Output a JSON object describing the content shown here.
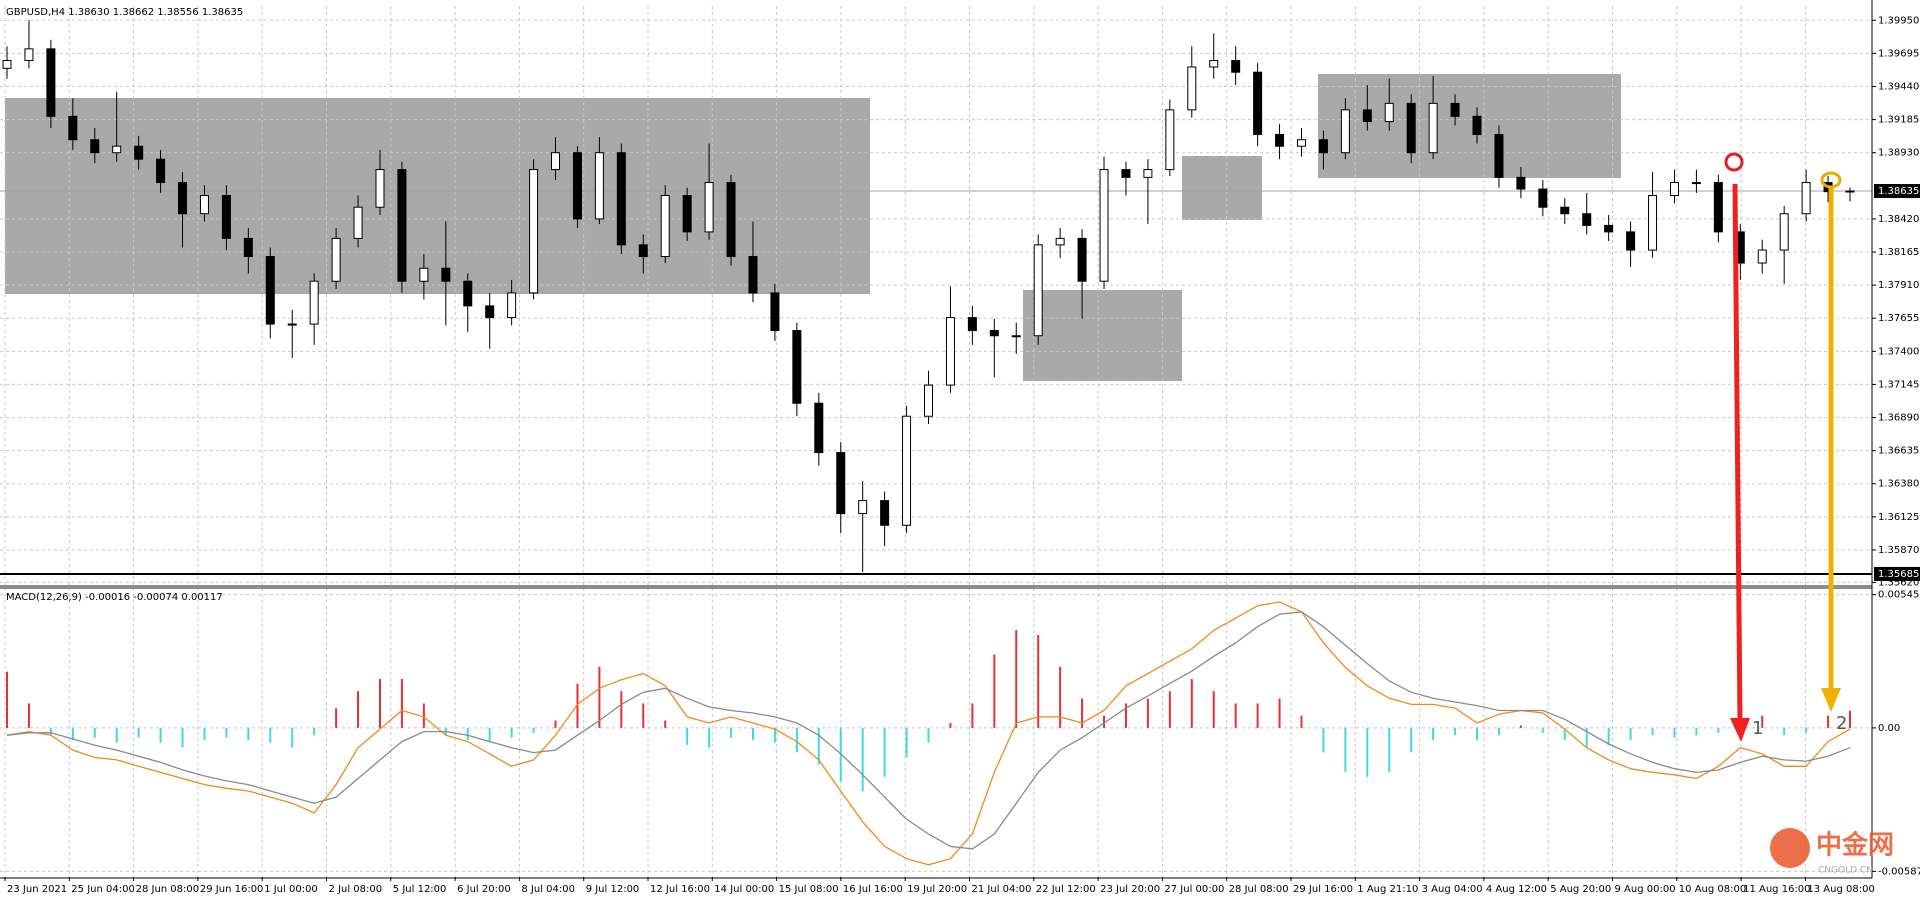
{
  "chart_data": {
    "type": "candlestick",
    "title": "GBPUSD,H4  1.38630 1.38662 1.38556 1.38635",
    "ylim": [
      1.356,
      1.4006
    ],
    "yticks": [
      {
        "value": 1.3995,
        "label": "1.39950"
      },
      1.39695,
      {
        "value": 1.3944,
        "label": "1.39440"
      },
      1.39185,
      {
        "value": 1.3893,
        "label": "1.38930"
      },
      {
        "value": 1.3842,
        "label": "1.38420"
      },
      1.38165,
      {
        "value": 1.3791,
        "label": "1.37910"
      },
      1.37655,
      {
        "value": 1.374,
        "label": "1.37400"
      },
      1.37145,
      {
        "value": 1.3689,
        "label": "1.36890"
      },
      1.36635,
      {
        "value": 1.3638,
        "label": "1.36380"
      },
      1.36125,
      {
        "value": 1.3587,
        "label": "1.35870"
      },
      {
        "value": 1.3562,
        "label": "1.35620"
      }
    ],
    "grid": true,
    "bull_color": "#ffffff",
    "bear_color": "#000000",
    "x_labels": [
      "23 Jun 2021",
      "25 Jun 04:00",
      "28 Jun 08:00",
      "29 Jun 16:00",
      "1 Jul 00:00",
      "2 Jul 08:00",
      "5 Jul 12:00",
      "6 Jul 20:00",
      "8 Jul 04:00",
      "9 Jul 12:00",
      "12 Jul 16:00",
      "14 Jul 00:00",
      "15 Jul 08:00",
      "16 Jul 16:00",
      "19 Jul 20:00",
      "21 Jul 04:00",
      "22 Jul 12:00",
      "23 Jul 20:00",
      "27 Jul 00:00",
      "28 Jul 08:00",
      "29 Jul 16:00",
      "1 Aug 21:10",
      "3 Aug 04:00",
      "4 Aug 12:00",
      "5 Aug 20:00",
      "9 Aug 00:00",
      "10 Aug 08:00",
      "11 Aug 16:00",
      "13 Aug 08:00"
    ],
    "candles": [
      [
        1.3958,
        1.3975,
        1.395,
        1.3964
      ],
      [
        1.3964,
        1.3995,
        1.3958,
        1.3973
      ],
      [
        1.3973,
        1.398,
        1.3912,
        1.3921
      ],
      [
        1.3921,
        1.3935,
        1.3895,
        1.3903
      ],
      [
        1.3903,
        1.3912,
        1.3885,
        1.3893
      ],
      [
        1.3893,
        1.394,
        1.3886,
        1.3898
      ],
      [
        1.3898,
        1.3906,
        1.388,
        1.3888
      ],
      [
        1.3888,
        1.3895,
        1.3862,
        1.387
      ],
      [
        1.387,
        1.3878,
        1.382,
        1.3846
      ],
      [
        1.3846,
        1.3868,
        1.384,
        1.386
      ],
      [
        1.386,
        1.3868,
        1.3818,
        1.3827
      ],
      [
        1.3827,
        1.3835,
        1.38,
        1.3813
      ],
      [
        1.3813,
        1.382,
        1.375,
        1.3761
      ],
      [
        1.3761,
        1.3772,
        1.3735,
        1.3761
      ],
      [
        1.3761,
        1.38,
        1.3745,
        1.3794
      ],
      [
        1.3794,
        1.3835,
        1.3788,
        1.3827
      ],
      [
        1.3827,
        1.386,
        1.382,
        1.3851
      ],
      [
        1.3851,
        1.3895,
        1.3845,
        1.388
      ],
      [
        1.388,
        1.3886,
        1.3785,
        1.3794
      ],
      [
        1.3794,
        1.3815,
        1.378,
        1.3804
      ],
      [
        1.3804,
        1.384,
        1.376,
        1.3794
      ],
      [
        1.3794,
        1.38,
        1.3755,
        1.3775
      ],
      [
        1.3775,
        1.3785,
        1.3742,
        1.3766
      ],
      [
        1.3766,
        1.3795,
        1.376,
        1.3785
      ],
      [
        1.3785,
        1.3888,
        1.378,
        1.388
      ],
      [
        1.388,
        1.3905,
        1.3872,
        1.3893
      ],
      [
        1.3893,
        1.3898,
        1.3835,
        1.3842
      ],
      [
        1.3842,
        1.3905,
        1.3838,
        1.3893
      ],
      [
        1.3893,
        1.39,
        1.3815,
        1.3822
      ],
      [
        1.3822,
        1.383,
        1.38,
        1.3813
      ],
      [
        1.3813,
        1.3868,
        1.3808,
        1.386
      ],
      [
        1.386,
        1.3866,
        1.3825,
        1.3832
      ],
      [
        1.3832,
        1.39,
        1.3826,
        1.387
      ],
      [
        1.387,
        1.3876,
        1.3806,
        1.3813
      ],
      [
        1.3813,
        1.384,
        1.3778,
        1.3785
      ],
      [
        1.3785,
        1.3792,
        1.3748,
        1.3756
      ],
      [
        1.3756,
        1.3762,
        1.369,
        1.37
      ],
      [
        1.37,
        1.3708,
        1.3652,
        1.3662
      ],
      [
        1.3662,
        1.367,
        1.36,
        1.3615
      ],
      [
        1.3615,
        1.364,
        1.357,
        1.3625
      ],
      [
        1.3625,
        1.3632,
        1.359,
        1.3606
      ],
      [
        1.3606,
        1.3698,
        1.36,
        1.369
      ],
      [
        1.369,
        1.3725,
        1.3684,
        1.3714
      ],
      [
        1.3714,
        1.379,
        1.3708,
        1.3766
      ],
      [
        1.3766,
        1.3775,
        1.3745,
        1.3756
      ],
      [
        1.3756,
        1.3765,
        1.372,
        1.3752
      ],
      [
        1.3752,
        1.3762,
        1.3738,
        1.3752
      ],
      [
        1.3752,
        1.383,
        1.3745,
        1.3822
      ],
      [
        1.3822,
        1.3835,
        1.3812,
        1.3827
      ],
      [
        1.3827,
        1.3834,
        1.3765,
        1.3794
      ],
      [
        1.3794,
        1.389,
        1.3788,
        1.388
      ],
      [
        1.388,
        1.3886,
        1.386,
        1.3874
      ],
      [
        1.3874,
        1.3888,
        1.3838,
        1.388
      ],
      [
        1.388,
        1.3934,
        1.3875,
        1.3926
      ],
      [
        1.3926,
        1.3975,
        1.392,
        1.3959
      ],
      [
        1.3959,
        1.3985,
        1.395,
        1.3964
      ],
      [
        1.3964,
        1.3975,
        1.3945,
        1.3955
      ],
      [
        1.3955,
        1.3962,
        1.3898,
        1.3907
      ],
      [
        1.3907,
        1.3915,
        1.3888,
        1.3898
      ],
      [
        1.3898,
        1.3912,
        1.389,
        1.3903
      ],
      [
        1.3903,
        1.391,
        1.388,
        1.3893
      ],
      [
        1.3893,
        1.3935,
        1.3888,
        1.3926
      ],
      [
        1.3926,
        1.3945,
        1.391,
        1.3917
      ],
      [
        1.3917,
        1.395,
        1.391,
        1.3931
      ],
      [
        1.3931,
        1.3938,
        1.3885,
        1.3893
      ],
      [
        1.3893,
        1.3952,
        1.3888,
        1.3931
      ],
      [
        1.3931,
        1.3938,
        1.3914,
        1.3921
      ],
      [
        1.3921,
        1.3928,
        1.39,
        1.3907
      ],
      [
        1.3907,
        1.3914,
        1.3866,
        1.3874
      ],
      [
        1.3874,
        1.3882,
        1.3858,
        1.3865
      ],
      [
        1.3865,
        1.3872,
        1.3844,
        1.3851
      ],
      [
        1.3851,
        1.3858,
        1.3838,
        1.3846
      ],
      [
        1.3846,
        1.3862,
        1.383,
        1.3837
      ],
      [
        1.3837,
        1.3845,
        1.3825,
        1.3832
      ],
      [
        1.3832,
        1.384,
        1.3805,
        1.3818
      ],
      [
        1.3818,
        1.3878,
        1.3812,
        1.386
      ],
      [
        1.386,
        1.388,
        1.3854,
        1.387
      ],
      [
        1.387,
        1.388,
        1.3862,
        1.387
      ],
      [
        1.387,
        1.3876,
        1.3824,
        1.3832
      ],
      [
        1.3832,
        1.3838,
        1.3795,
        1.3808
      ],
      [
        1.3808,
        1.3826,
        1.38,
        1.3818
      ],
      [
        1.3818,
        1.3852,
        1.3792,
        1.3846
      ],
      [
        1.3846,
        1.388,
        1.384,
        1.387
      ],
      [
        1.387,
        1.3875,
        1.3855,
        1.3863
      ],
      [
        1.3863,
        1.38662,
        1.38556,
        1.38635
      ]
    ],
    "current_price": 1.38635,
    "level": 1.35685,
    "annotations": [
      "1",
      "2"
    ],
    "macd": {
      "title": "MACD(12,26,9) -0.00016 -0.00074 0.00117",
      "ylim": [
        -0.0061,
        0.0056
      ],
      "yticks": [
        {
          "value": 0.00545,
          "label": "0.00545"
        },
        {
          "value": 0,
          "label": "0.00"
        },
        {
          "value": -0.00587,
          "label": "-0.00587"
        }
      ],
      "pos_color": "#e83030",
      "neg_color": "#40d8e8",
      "histogram": [
        0.0023,
        0.001,
        -0.0003,
        -0.0005,
        -0.0004,
        -0.0006,
        -0.0004,
        -0.0006,
        -0.0008,
        -0.0005,
        -0.0004,
        -0.0005,
        -0.0006,
        -0.0008,
        -0.0003,
        0.0008,
        0.0015,
        0.002,
        0.002,
        0.001,
        -0.0003,
        -0.0005,
        -0.0006,
        -0.0004,
        -0.0002,
        0.0003,
        0.0018,
        0.0025,
        0.0015,
        0.001,
        0.0003,
        -0.0007,
        -0.0008,
        -0.0004,
        -0.0005,
        -0.0006,
        -0.001,
        -0.0015,
        -0.0022,
        -0.0026,
        -0.002,
        -0.0012,
        -0.0006,
        0.0002,
        0.001,
        0.003,
        0.004,
        0.0038,
        0.0025,
        0.0012,
        0.0005,
        0.001,
        0.0012,
        0.0015,
        0.002,
        0.0015,
        0.001,
        0.001,
        0.0012,
        0.0005,
        -0.001,
        -0.0018,
        -0.002,
        -0.0018,
        -0.001,
        -0.0005,
        -0.0003,
        -0.0005,
        -0.0003,
        0.0001,
        -0.0002,
        -0.0005,
        -0.0008,
        -0.0007,
        -0.0005,
        -0.0003,
        -0.0004,
        -0.0003,
        -0.0002,
        0.0004,
        0.0005,
        -0.0003,
        -0.0002,
        0.0005,
        0.0007
      ],
      "lines": [
        {
          "color": "#f08a1c",
          "values": [
            -0.0003,
            -0.00015,
            -0.0003,
            -0.00091,
            -0.00121,
            -0.00131,
            -0.00157,
            -0.00182,
            -0.00207,
            -0.00232,
            -0.00247,
            -0.00258,
            -0.00283,
            -0.00308,
            -0.00348,
            -0.00232,
            -0.00081,
            -5e-05,
            0.00071,
            0.00045,
            -0.0003,
            -0.00056,
            -0.00106,
            -0.00157,
            -0.00131,
            -0.0003,
            0.00096,
            0.00162,
            0.00197,
            0.00222,
            0.00172,
            0.00045,
            0.0002,
            0.00045,
            0.0002,
            -5e-05,
            -0.00056,
            -0.00131,
            -0.00258,
            -0.00384,
            -0.00485,
            -0.00535,
            -0.0056,
            -0.00535,
            -0.00434,
            -0.00182,
            0.0002,
            0.00045,
            0.00045,
            0.0002,
            0.00071,
            0.00172,
            0.00222,
            0.00273,
            0.00323,
            0.00399,
            0.00449,
            0.005,
            0.00515,
            0.00475,
            0.00348,
            0.00247,
            0.00172,
            0.00121,
            0.00096,
            0.00096,
            0.00081,
            0.0002,
            0.00056,
            0.00071,
            0.00061,
            -5e-05,
            -0.00081,
            -0.00131,
            -0.00167,
            -0.00182,
            -0.00192,
            -0.00207,
            -0.00157,
            -0.00081,
            -0.00106,
            -0.00157,
            -0.00157,
            -0.00056,
            -5e-05
          ]
        },
        {
          "color": "#8a8a8a",
          "values": [
            -0.0003,
            -0.0002,
            -0.0002,
            -0.00045,
            -0.00071,
            -0.00091,
            -0.00116,
            -0.00141,
            -0.00172,
            -0.00197,
            -0.00217,
            -0.00232,
            -0.00258,
            -0.00283,
            -0.00308,
            -0.00283,
            -0.00207,
            -0.00131,
            -0.00056,
            -0.00015,
            -0.00015,
            -0.0003,
            -0.00056,
            -0.00081,
            -0.00101,
            -0.00091,
            -0.0003,
            0.0003,
            0.00096,
            0.00146,
            0.00162,
            0.00121,
            0.00086,
            0.00071,
            0.00061,
            0.00045,
            0.0002,
            -0.0003,
            -0.00106,
            -0.00192,
            -0.00283,
            -0.00374,
            -0.00434,
            -0.00485,
            -0.00495,
            -0.00434,
            -0.00308,
            -0.00182,
            -0.00091,
            -0.0004,
            0.0002,
            0.00081,
            0.00131,
            0.00182,
            0.00232,
            0.00293,
            0.00348,
            0.00414,
            0.00465,
            0.00475,
            0.00414,
            0.00338,
            0.00263,
            0.00192,
            0.00146,
            0.00121,
            0.00106,
            0.00091,
            0.00071,
            0.00071,
            0.00071,
            0.00035,
            -0.00015,
            -0.00066,
            -0.00106,
            -0.00141,
            -0.00167,
            -0.00182,
            -0.00172,
            -0.00141,
            -0.00116,
            -0.00131,
            -0.00136,
            -0.00116,
            -0.00081
          ]
        }
      ]
    }
  },
  "watermark": {
    "logo": "中金网",
    "site": "CNGOLD.CN"
  }
}
